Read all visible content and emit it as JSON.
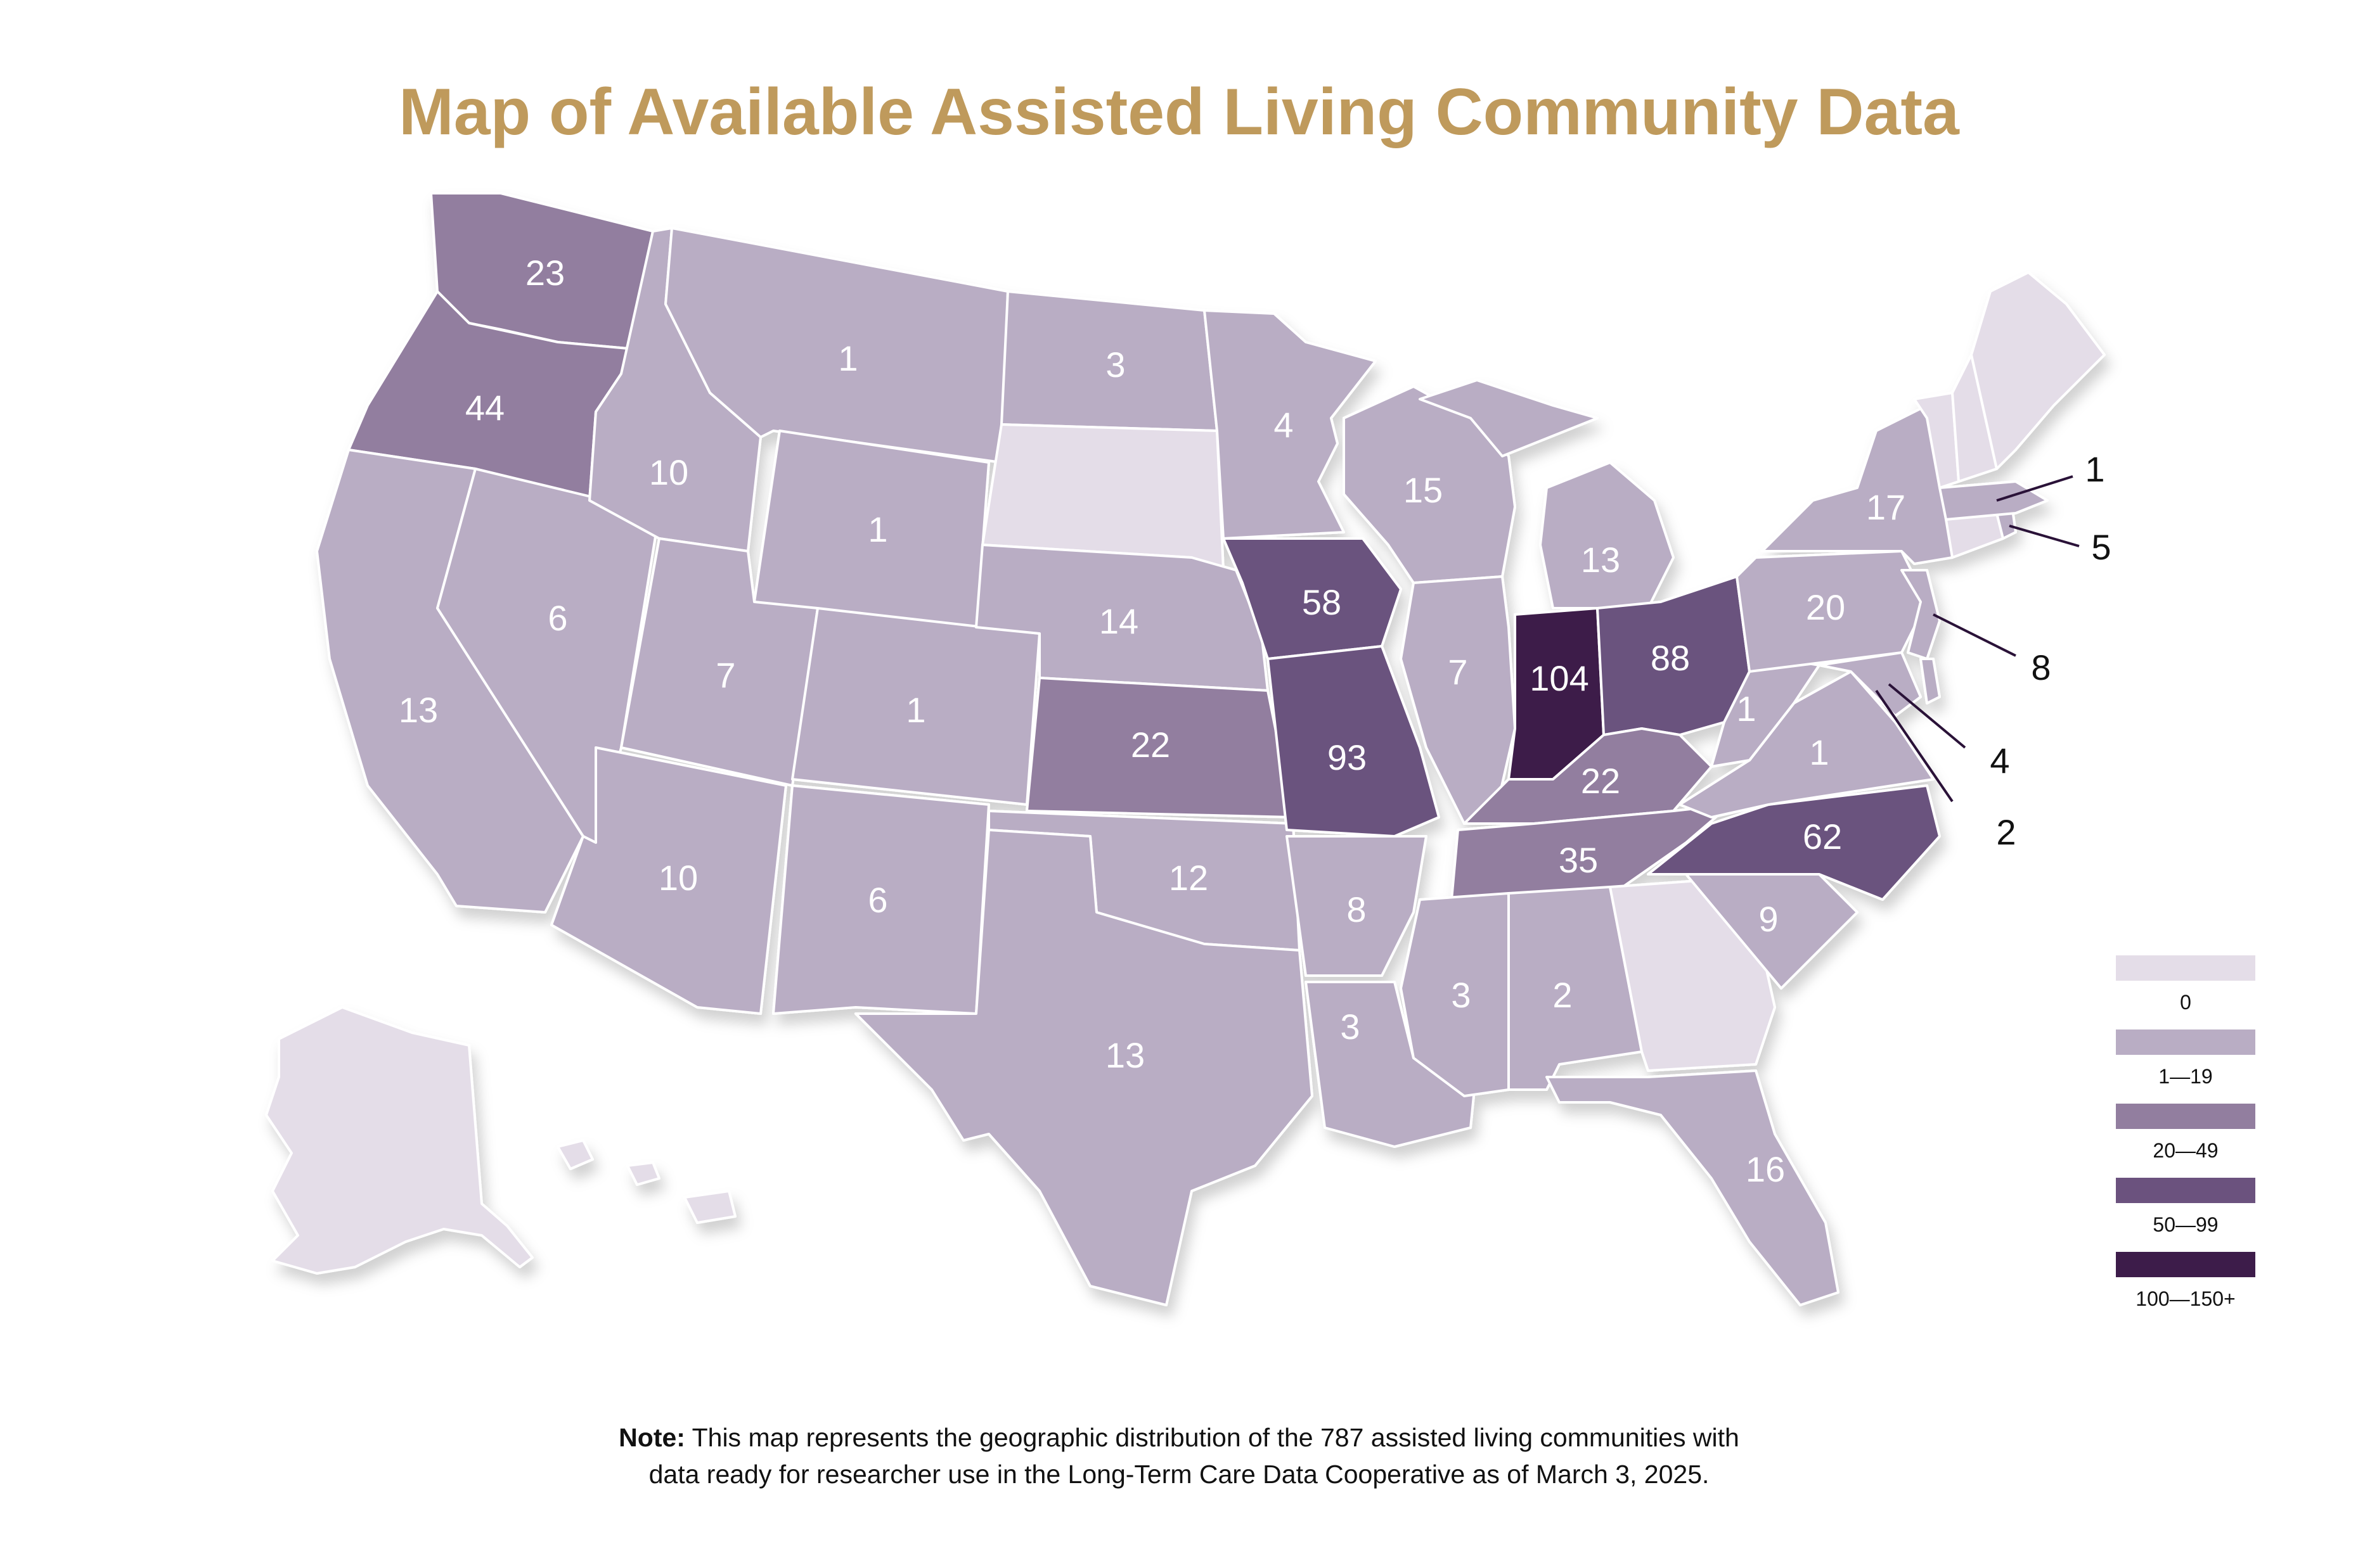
{
  "title": "Map of Available Assisted Living Community Data",
  "colors": {
    "title": "#bf9a5c",
    "bin_0": "#e4dde8",
    "bin_1_19": "#b9adc4",
    "bin_20_49": "#927e9f",
    "bin_50_99": "#6b527e",
    "bin_100_plus": "#3d1c4a"
  },
  "legend": {
    "items": [
      {
        "label": "0",
        "color": "#e4dde8"
      },
      {
        "label": "1—19",
        "color": "#b9adc4"
      },
      {
        "label": "20—49",
        "color": "#927e9f"
      },
      {
        "label": "50—99",
        "color": "#6b527e"
      },
      {
        "label": "100—150+",
        "color": "#3d1c4a"
      }
    ]
  },
  "states": {
    "WA": "23",
    "OR": "44",
    "CA": "13",
    "NV": "6",
    "ID": "10",
    "MT": "1",
    "WY": "1",
    "UT": "7",
    "AZ": "10",
    "CO": "1",
    "NM": "6",
    "ND": "3",
    "SD": "",
    "NE": "14",
    "KS": "22",
    "OK": "12",
    "TX": "13",
    "MN": "4",
    "IA": "58",
    "MO": "93",
    "AR": "8",
    "LA": "3",
    "WI": "15",
    "IL": "7",
    "MI": "13",
    "IN": "104",
    "OH": "88",
    "KY": "22",
    "TN": "35",
    "MS": "3",
    "AL": "2",
    "GA": "",
    "FL": "16",
    "SC": "9",
    "NC": "62",
    "VA": "1",
    "WV": "1",
    "PA": "20",
    "NY": "17"
  },
  "callouts": {
    "MA": "1",
    "CT": "5",
    "NJ": "8",
    "MD": "4",
    "DE": "2"
  },
  "note": {
    "bold": "Note:",
    "text": "This map represents the geographic distribution of the 787 assisted living communities with",
    "text2": "data ready for researcher use in the Long-Term Care Data Cooperative as of March 3, 2025."
  }
}
